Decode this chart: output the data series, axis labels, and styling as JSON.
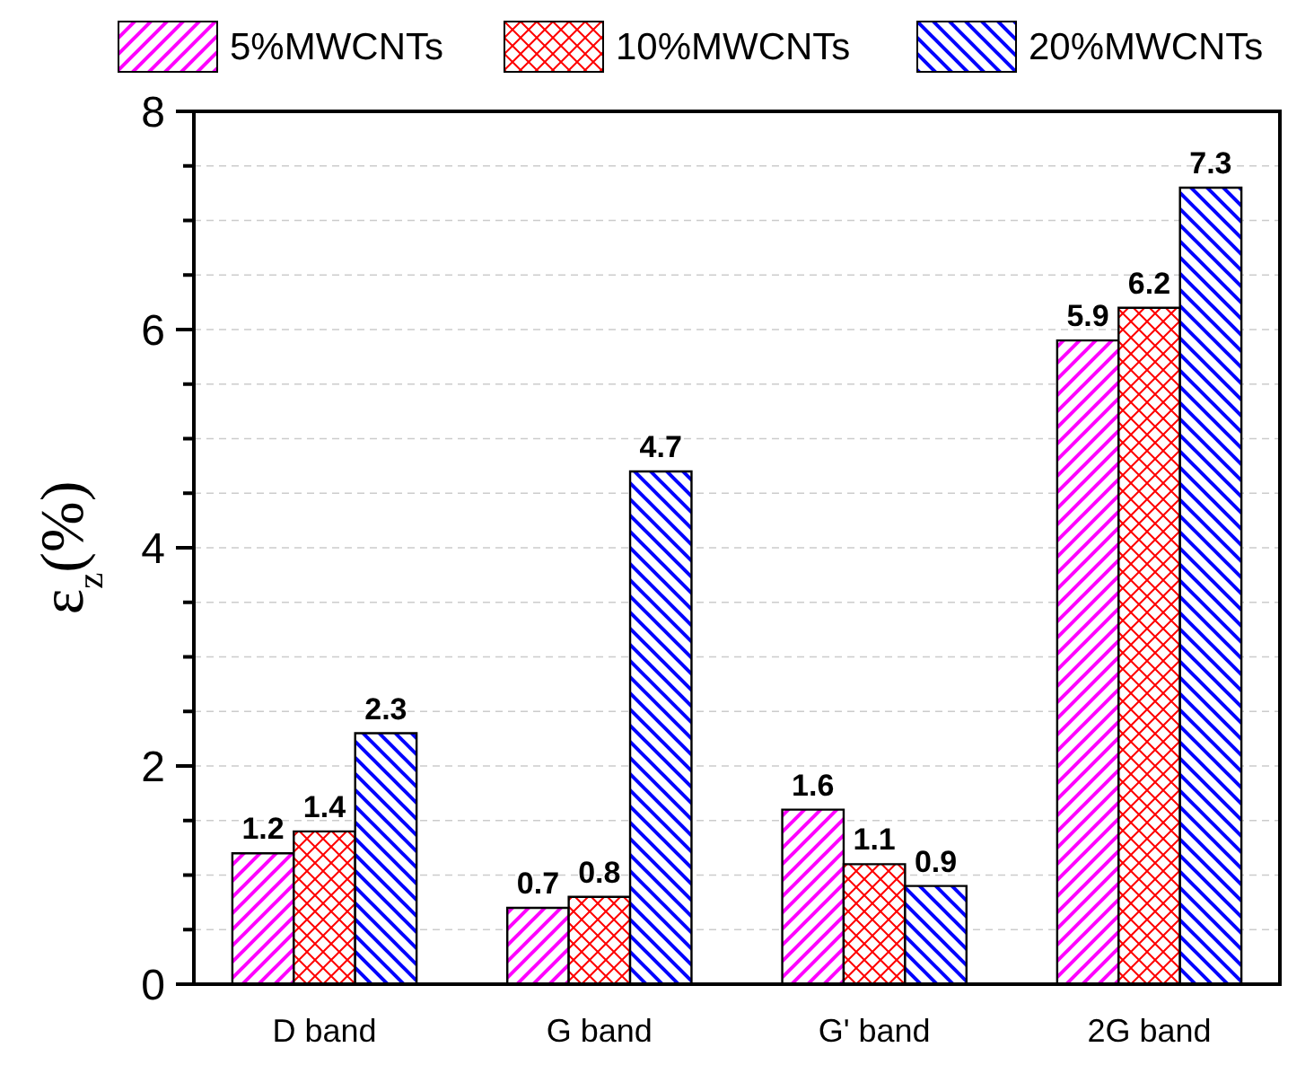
{
  "chart_data": {
    "type": "bar",
    "ylabel": "ε$_{z}$(%)",
    "categories": [
      "D band",
      "G band",
      "G' band",
      "2G band"
    ],
    "series": [
      {
        "name": "5%MWCNTs",
        "color": "#ff00ff",
        "values": [
          1.2,
          0.7,
          1.6,
          5.9
        ]
      },
      {
        "name": "10%MWCNTs",
        "color": "#ff0000",
        "values": [
          1.4,
          0.8,
          1.1,
          6.2
        ]
      },
      {
        "name": "20%MWCNTs",
        "color": "#0000ff",
        "values": [
          2.3,
          4.7,
          0.9,
          7.3
        ]
      }
    ],
    "ylim": [
      0,
      8
    ],
    "yticks": [
      0,
      {
        "value": 0.5,
        "label": null
      },
      {
        "value": 1,
        "label": null
      },
      {
        "value": 1.5,
        "label": null
      },
      2,
      {
        "value": 2.5,
        "label": null
      },
      {
        "value": 3,
        "label": null
      },
      {
        "value": 3.5,
        "label": null
      },
      4,
      {
        "value": 4.5,
        "label": null
      },
      {
        "value": 5,
        "label": null
      },
      {
        "value": 5.5,
        "label": null
      },
      6,
      {
        "value": 6.5,
        "label": null
      },
      {
        "value": 7,
        "label": null
      },
      {
        "value": 7.5,
        "label": null
      },
      8
    ],
    "grid": "y",
    "legend": "top",
    "data_labels": true
  }
}
